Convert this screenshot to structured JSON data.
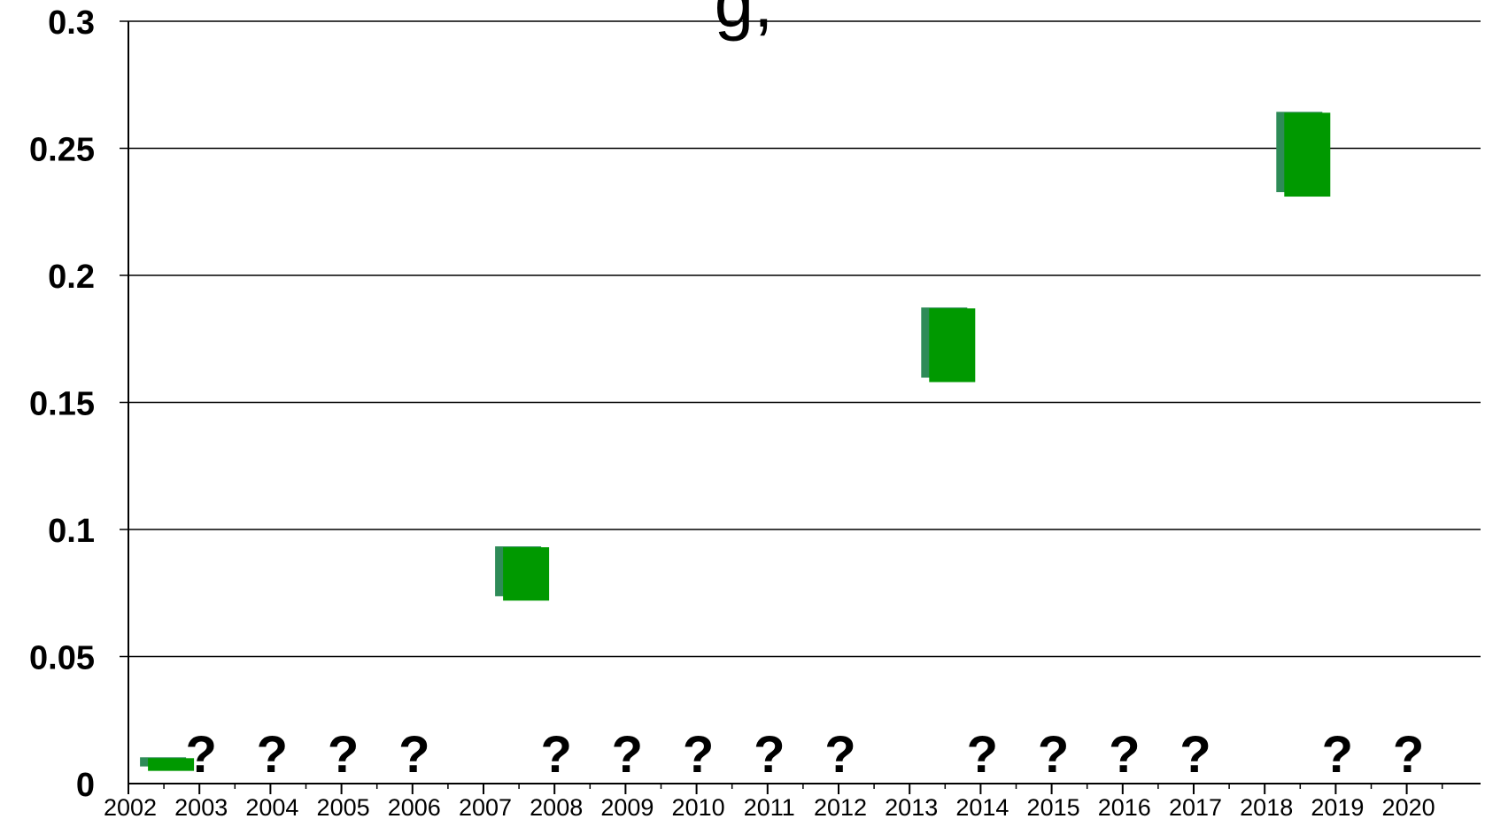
{
  "chart_data": {
    "type": "bar",
    "title": "g,",
    "xlabel": "",
    "ylabel": "",
    "ylim": [
      0,
      0.3
    ],
    "yticks": [
      "0",
      "0.05",
      "0.1",
      "0.15",
      "0.2",
      "0.25",
      "0.3"
    ],
    "categories": [
      "2002",
      "2003",
      "2004",
      "2005",
      "2006",
      "2007",
      "2008",
      "2009",
      "2010",
      "2011",
      "2012",
      "2013",
      "2014",
      "2015",
      "2016",
      "2017",
      "2018",
      "2019",
      "2020"
    ],
    "ranges": [
      {
        "year": 2002,
        "low": 0.005,
        "high": 0.01
      },
      {
        "year": 2007,
        "low": 0.072,
        "high": 0.093
      },
      {
        "year": 2013,
        "low": 0.158,
        "high": 0.187
      },
      {
        "year": 2018,
        "low": 0.231,
        "high": 0.264
      }
    ],
    "unknown_years": [
      2003,
      2004,
      2005,
      2006,
      2008,
      2009,
      2010,
      2011,
      2012,
      2014,
      2015,
      2016,
      2017,
      2019,
      2020
    ],
    "unknown_marker": "?",
    "grid": true,
    "colors": {
      "bar": "#009900",
      "bar_shadow": "#2e8b57",
      "grid": "#000000"
    }
  }
}
